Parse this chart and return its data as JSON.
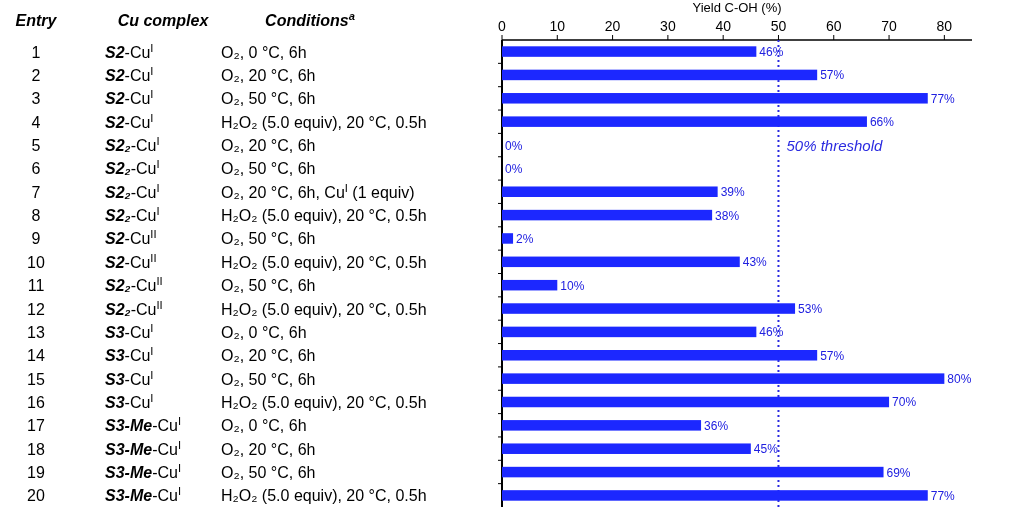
{
  "chart_data": {
    "type": "bar",
    "orientation": "horizontal",
    "x2label": "Yield C-OH (%)",
    "ylabel": "Entry",
    "categories": [
      "1",
      "2",
      "3",
      "4",
      "5",
      "6",
      "7",
      "8",
      "9",
      "10",
      "11",
      "12",
      "13",
      "14",
      "15",
      "16",
      "17",
      "18",
      "19",
      "20"
    ],
    "values": [
      46,
      57,
      77,
      66,
      0,
      0,
      39,
      38,
      2,
      43,
      10,
      53,
      46,
      57,
      80,
      70,
      36,
      45,
      69,
      77
    ],
    "value_labels": [
      "46%",
      "57%",
      "77%",
      "66%",
      "0%",
      "0%",
      "39%",
      "38%",
      "2%",
      "43%",
      "10%",
      "53%",
      "46%",
      "57%",
      "80%",
      "70%",
      "36%",
      "45%",
      "69%",
      "77%"
    ],
    "color": "#1c28ff",
    "x2lim": [
      0,
      85
    ],
    "x2ticks": [
      0,
      10,
      20,
      30,
      40,
      50,
      60,
      70,
      80
    ],
    "ref_lines": [
      {
        "axis": "x",
        "value": 50,
        "label": "50% threshold",
        "color": "#2a2ae0",
        "line_style": "dotted"
      }
    ],
    "annotations": [
      "Cu complex",
      "Conditions$^{a}$",
      "S2-Cu$^{I}$",
      "S2-Cu$^{I}$",
      "S2-Cu$^{I}$",
      "S2-Cu$^{I}$",
      "S2₂-Cu$^{I}$",
      "S2₂-Cu$^{I}$",
      "S2₂-Cu$^{I}$",
      "S2₂-Cu$^{I}$",
      "S2-Cu$^{II}$",
      "S2-Cu$^{II}$",
      "S2₂-Cu$^{II}$",
      "S2₂-Cu$^{II}$",
      "S3-Cu$^{I}$",
      "S3-Cu$^{I}$",
      "S3-Cu$^{I}$",
      "S3-Cu$^{I}$",
      "S3-Me-Cu$^{I}$",
      "S3-Me-Cu$^{I}$",
      "S3-Me-Cu$^{I}$",
      "S3-Me-Cu$^{I}$",
      "O₂, 0 °C, 6h",
      "O₂, 20 °C, 6h",
      "O₂, 50 °C, 6h",
      "H₂O₂ (5.0 equiv), 20 °C, 0.5h",
      "O₂, 20 °C, 6h",
      "O₂, 50 °C, 6h",
      "O₂, 20 °C, 6h, Cu$^{I}$ (1 equiv)",
      "H₂O₂ (5.0 equiv), 20 °C, 0.5h",
      "O₂, 50 °C, 6h",
      "H₂O₂ (5.0 equiv), 20 °C, 0.5h",
      "O₂, 50 °C, 6h",
      "H₂O₂ (5.0 equiv), 20 °C, 0.5h",
      "O₂, 0 °C, 6h",
      "O₂, 20 °C, 6h",
      "O₂, 50 °C, 6h",
      "H₂O₂ (5.0 equiv), 20 °C, 0.5h",
      "O₂, 0 °C, 6h",
      "O₂, 20 °C, 6h",
      "O₂, 50 °C, 6h",
      "H₂O₂ (5.0 equiv), 20 °C, 0.5h"
    ]
  }
}
